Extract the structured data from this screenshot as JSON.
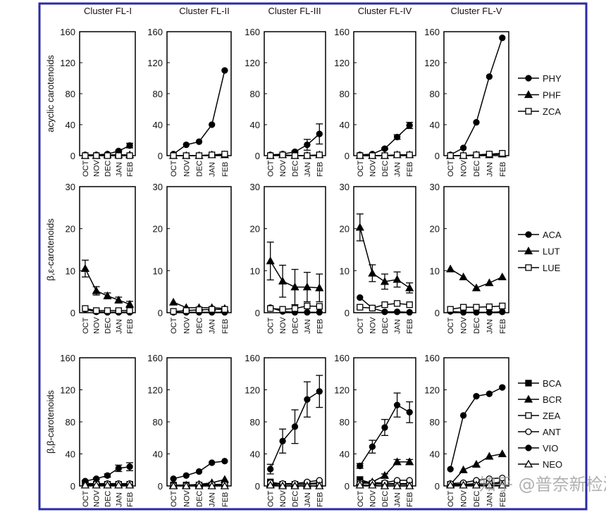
{
  "chart_data": {
    "type": "line",
    "months": [
      "OCT",
      "NOV",
      "DEC",
      "JAN",
      "FEB"
    ],
    "columns": [
      "Cluster FL-I",
      "Cluster FL-II",
      "Cluster FL-III",
      "Cluster FL-IV",
      "Cluster FL-V"
    ],
    "rows": [
      {
        "ylabel": "acyclic carotenoids",
        "ylim": [
          0,
          160
        ],
        "yticks": [
          0,
          40,
          80,
          120,
          160
        ],
        "legend": [
          {
            "name": "PHY",
            "marker": "circle-filled"
          },
          {
            "name": "PHF",
            "marker": "triangle-filled"
          },
          {
            "name": "ZCA",
            "marker": "square-open"
          }
        ],
        "panels": [
          {
            "PHY": [
              1,
              1,
              2,
              6,
              13
            ],
            "PHY_err": [
              0,
              0,
              0,
              1,
              3
            ],
            "PHF": [
              0,
              0,
              1,
              1,
              1
            ],
            "ZCA": [
              0,
              0,
              0,
              0,
              0
            ]
          },
          {
            "PHY": [
              2,
              14,
              18,
              40,
              110
            ],
            "PHF": [
              0,
              0,
              0,
              1,
              1
            ],
            "ZCA": [
              0,
              0,
              0,
              1,
              2
            ]
          },
          {
            "PHY": [
              1,
              2,
              5,
              14,
              28
            ],
            "PHY_err": [
              0,
              0,
              1,
              7,
              13
            ],
            "PHF": [
              0,
              1,
              0,
              0,
              1
            ],
            "ZCA": [
              0,
              1,
              0,
              0,
              1
            ]
          },
          {
            "PHY": [
              1,
              2,
              9,
              24,
              39
            ],
            "PHY_err": [
              0,
              0,
              1,
              3,
              4
            ],
            "PHF": [
              0,
              0,
              0,
              1,
              1
            ],
            "ZCA": [
              0,
              0,
              0,
              1,
              1
            ]
          },
          {
            "PHY": [
              1,
              10,
              43,
              102,
              152
            ],
            "PHF": [
              0,
              0,
              1,
              1,
              2
            ],
            "ZCA": [
              0,
              0,
              1,
              2,
              3
            ]
          }
        ]
      },
      {
        "ylabel": "β,ε-carotenoids",
        "ylim": [
          0,
          30
        ],
        "yticks": [
          0,
          10,
          20,
          30
        ],
        "legend": [
          {
            "name": "ACA",
            "marker": "circle-filled"
          },
          {
            "name": "LUT",
            "marker": "triangle-filled"
          },
          {
            "name": "LUE",
            "marker": "square-open"
          }
        ],
        "panels": [
          {
            "ACA": [
              0.8,
              0.2,
              0.1,
              0.1,
              0.1
            ],
            "LUT": [
              10.5,
              5.2,
              4,
              3,
              2
            ],
            "LUT_err": [
              2,
              1,
              0.7,
              0.7,
              0.7
            ],
            "LUE": [
              1,
              0.5,
              0.5,
              0.5,
              0.5
            ]
          },
          {
            "ACA": [
              0.1,
              0.1,
              0.1,
              0.1,
              0.1
            ],
            "LUT": [
              2.5,
              1.2,
              1.2,
              1.2,
              1.0
            ],
            "LUE": [
              0.3,
              0.5,
              0.7,
              0.8,
              0.8
            ]
          },
          {
            "ACA": [
              1.2,
              0.3,
              0.1,
              0.1,
              0.1
            ],
            "LUT": [
              12.3,
              7.5,
              6.1,
              6.1,
              5.9
            ],
            "LUT_err": [
              4.5,
              3.8,
              4.2,
              3.5,
              3.3
            ],
            "LUE": [
              1,
              0.8,
              1,
              1.6,
              1.5
            ]
          },
          {
            "ACA": [
              3.6,
              1.1,
              0.2,
              0.2,
              0.1
            ],
            "LUT": [
              20.3,
              9.4,
              7.4,
              7.9,
              5.9
            ],
            "LUT_err": [
              3.2,
              2,
              1.8,
              1.8,
              1.2
            ],
            "LUE": [
              1.3,
              1.1,
              1.9,
              2.2,
              1.9
            ]
          },
          {
            "ACA": [
              0.3,
              0.1,
              0.1,
              0.1,
              0.2
            ],
            "LUT": [
              10.4,
              8.5,
              5.9,
              7.1,
              8.5
            ],
            "LUE": [
              0.8,
              1.3,
              1.3,
              1.4,
              1.6
            ]
          }
        ]
      },
      {
        "ylabel": "β,β-carotenoids",
        "ylim": [
          0,
          160
        ],
        "yticks": [
          0,
          40,
          80,
          120,
          160
        ],
        "legend": [
          {
            "name": "BCA",
            "marker": "square-filled"
          },
          {
            "name": "BCR",
            "marker": "triangle-filled"
          },
          {
            "name": "ZEA",
            "marker": "square-open"
          },
          {
            "name": "ANT",
            "marker": "circle-open"
          },
          {
            "name": "VIO",
            "marker": "circle-filled"
          },
          {
            "name": "NEO",
            "marker": "triangle-open"
          }
        ],
        "panels": [
          {
            "BCA": [
              3,
              2,
              2,
              2,
              2
            ],
            "BCR": [
              1,
              1,
              1,
              1,
              1
            ],
            "ZEA": [
              2,
              2,
              2,
              2,
              2
            ],
            "ANT": [
              3,
              3,
              3,
              3,
              3
            ],
            "VIO": [
              6,
              9,
              13,
              22,
              24
            ],
            "VIO_err": [
              1,
              1,
              2,
              4,
              5
            ],
            "NEO": [
              1,
              1,
              1,
              1,
              1
            ]
          },
          {
            "BCA": [
              1,
              1,
              1,
              1,
              1
            ],
            "BCR": [
              1,
              1,
              2,
              4,
              8
            ],
            "ZEA": [
              1,
              1,
              1,
              1,
              1
            ],
            "ANT": [
              1,
              1,
              2,
              2,
              2
            ],
            "VIO": [
              9,
              13,
              18,
              29,
              31
            ],
            "NEO": [
              0,
              0,
              0,
              0,
              0
            ]
          },
          {
            "BCA": [
              5,
              2,
              2,
              2,
              3
            ],
            "BCR": [
              2,
              2,
              2,
              2,
              3
            ],
            "ZEA": [
              3,
              2,
              2,
              3,
              4
            ],
            "ANT": [
              4,
              3,
              3,
              5,
              7
            ],
            "VIO": [
              21,
              56,
              74,
              108,
              118
            ],
            "VIO_err": [
              6,
              15,
              21,
              22,
              20
            ],
            "NEO": [
              1,
              0,
              0,
              0,
              0
            ]
          },
          {
            "BCA": [
              8,
              3,
              2,
              2,
              2
            ],
            "BCR": [
              5,
              5,
              13,
              30,
              30
            ],
            "BCR_err": [
              0,
              0,
              2,
              3,
              3
            ],
            "ZEA": [
              4,
              3,
              3,
              3,
              3
            ],
            "ANT": [
              3,
              4,
              4,
              7,
              7
            ],
            "VIO": [
              25,
              49,
              73,
              101,
              92
            ],
            "VIO_err": [
              3,
              8,
              10,
              15,
              13
            ],
            "NEO": [
              1,
              1,
              0,
              0,
              0
            ]
          },
          {
            "BCA": [
              2,
              2,
              3,
              3,
              5
            ],
            "BCR": [
              2,
              20,
              27,
              37,
              40
            ],
            "ZEA": [
              1,
              1,
              2,
              3,
              3
            ],
            "ANT": [
              3,
              4,
              7,
              9,
              10
            ],
            "VIO": [
              21,
              88,
              112,
              115,
              123
            ],
            "NEO": [
              1,
              1,
              1,
              1,
              1
            ]
          }
        ]
      }
    ],
    "frame_color": "#2a2aa8"
  },
  "watermark": "知乎 @普奈新检测"
}
